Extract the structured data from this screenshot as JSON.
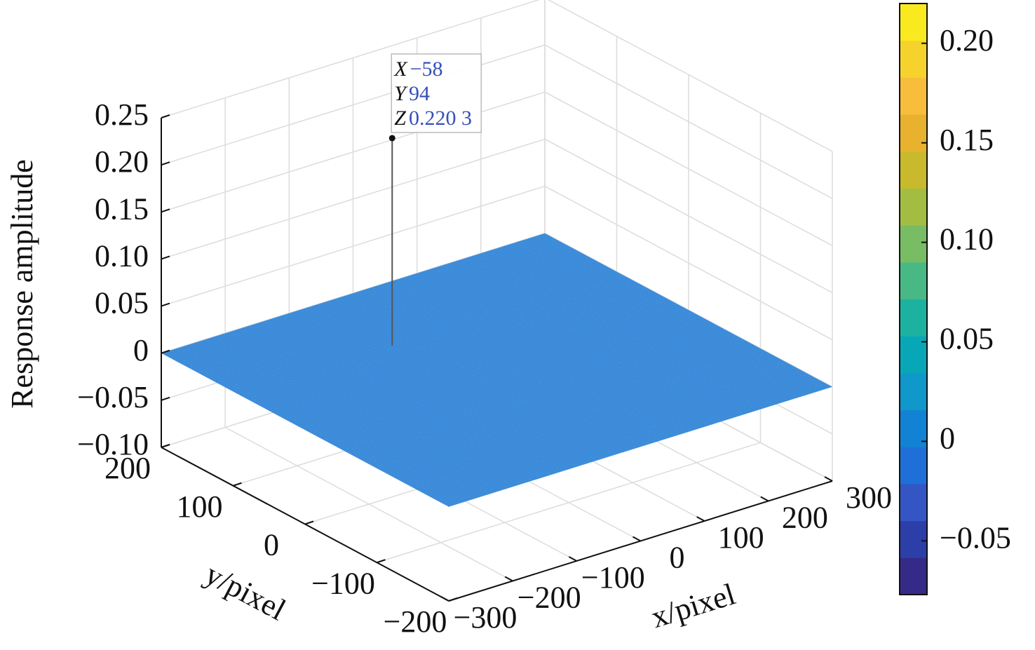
{
  "chart_data": {
    "type": "surface",
    "xlabel": "x/pixel",
    "ylabel": "y/pixel",
    "zlabel": "Response amplitude",
    "xlim": [
      -300,
      300
    ],
    "xticks": [
      {
        "value": -300,
        "label": "−300"
      },
      {
        "value": -200,
        "label": "−200"
      },
      {
        "value": -100,
        "label": "−100"
      },
      0,
      100,
      200,
      300
    ],
    "ylim": [
      -200,
      200
    ],
    "yticks": [
      {
        "value": -200,
        "label": "−200"
      },
      {
        "value": -100,
        "label": "−100"
      },
      0,
      100,
      200
    ],
    "zlim": [
      -0.1,
      0.25
    ],
    "zticks": [
      {
        "value": -0.1,
        "label": "−0.10"
      },
      {
        "value": -0.05,
        "label": "−0.05"
      },
      0,
      0.05,
      {
        "value": 0.1,
        "label": "0.10"
      },
      0.15,
      {
        "value": 0.2,
        "label": "0.20"
      },
      0.25
    ],
    "surface_z": 0,
    "grid": true,
    "clim": [
      -0.077,
      0.22
    ],
    "cticks": [
      {
        "value": -0.05,
        "label": "−0.05"
      },
      0,
      0.05,
      {
        "value": 0.1,
        "label": "0.10"
      },
      0.15,
      {
        "value": 0.2,
        "label": "0.20"
      }
    ],
    "colormap": [
      "#352a87",
      "#2c3fa8",
      "#3456c4",
      "#1f6fd8",
      "#1283d4",
      "#0f98c9",
      "#08a7b8",
      "#1db2a0",
      "#48b985",
      "#78bd64",
      "#a3bd43",
      "#c9b92c",
      "#e8b22f",
      "#f8be3b",
      "#f5d32c",
      "#f9ea1f"
    ],
    "datatip": {
      "labels": [
        "X",
        "Y",
        "Z"
      ],
      "x": {
        "value": -58,
        "label": "−58"
      },
      "y": 94,
      "z": {
        "value": 0.2203,
        "label": "0.220 3"
      }
    }
  }
}
